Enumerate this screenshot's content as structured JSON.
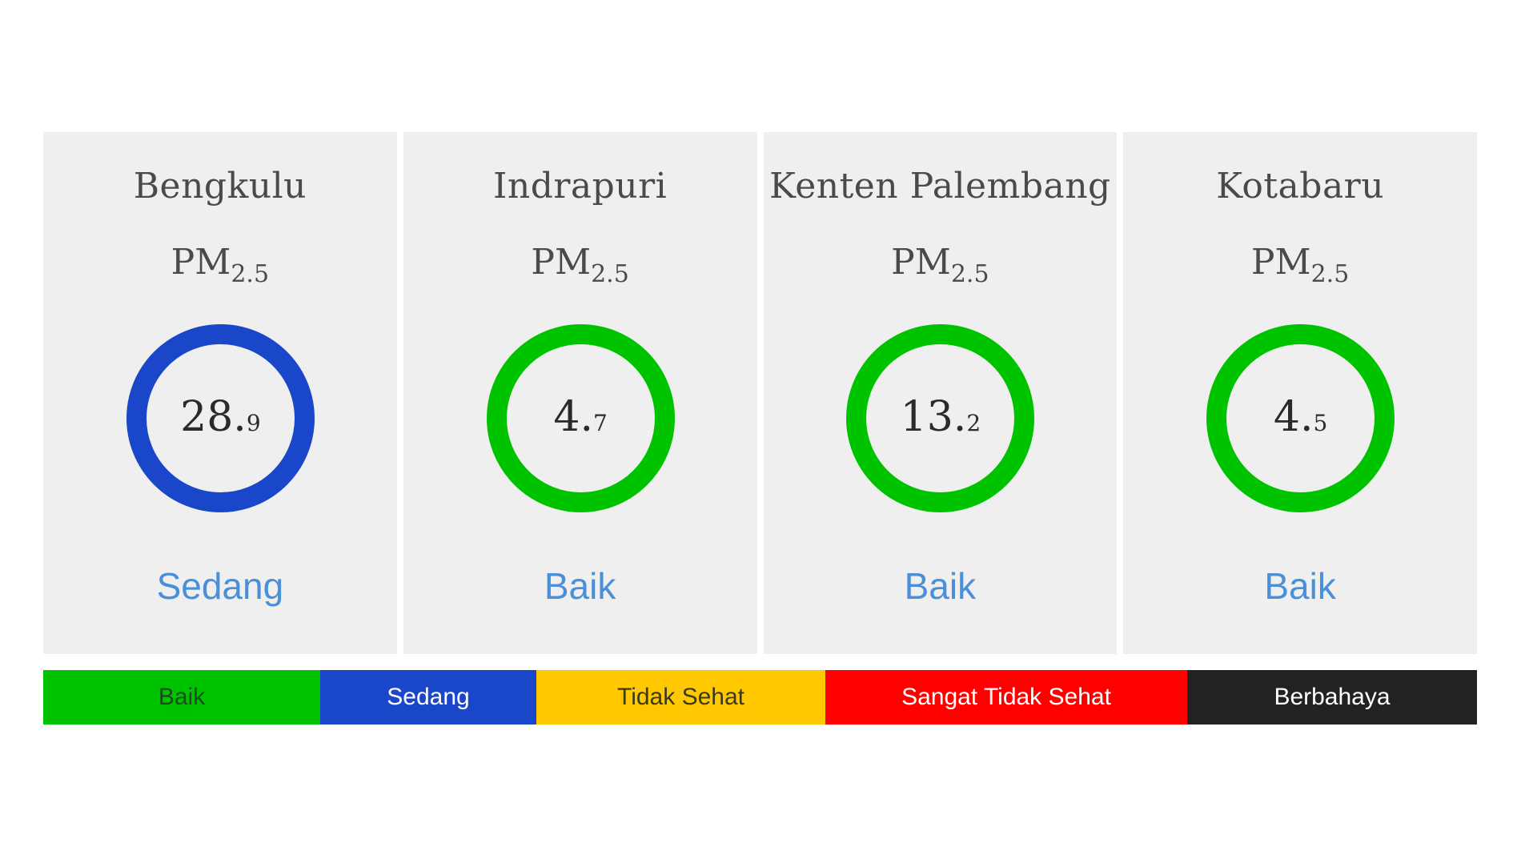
{
  "stations": [
    {
      "city": "Bengkulu",
      "pollutant": "PM",
      "pollutant_sub": "2.5",
      "value_int": "28.",
      "value_dec": "9",
      "category": "Sedang",
      "ring_color": "#1a47c9",
      "category_color": "#4a90d9"
    },
    {
      "city": "Indrapuri",
      "pollutant": "PM",
      "pollutant_sub": "2.5",
      "value_int": "4.",
      "value_dec": "7",
      "category": "Baik",
      "ring_color": "#00c300",
      "category_color": "#4a90d9"
    },
    {
      "city": "Kenten Palembang",
      "pollutant": "PM",
      "pollutant_sub": "2.5",
      "value_int": "13.",
      "value_dec": "2",
      "category": "Baik",
      "ring_color": "#00c300",
      "category_color": "#4a90d9"
    },
    {
      "city": "Kotabaru",
      "pollutant": "PM",
      "pollutant_sub": "2.5",
      "value_int": "4.",
      "value_dec": "5",
      "category": "Baik",
      "ring_color": "#00c300",
      "category_color": "#4a90d9"
    }
  ],
  "legend": [
    {
      "label": "Baik",
      "bg": "#00c300",
      "fg": "#1e4a1e"
    },
    {
      "label": "Sedang",
      "bg": "#1a47c9",
      "fg": "#ffffff"
    },
    {
      "label": "Tidak Sehat",
      "bg": "#ffc800",
      "fg": "#3a3a1a"
    },
    {
      "label": "Sangat Tidak Sehat",
      "bg": "#ff0000",
      "fg": "#ffffff"
    },
    {
      "label": "Berbahaya",
      "bg": "#222222",
      "fg": "#ffffff"
    }
  ]
}
